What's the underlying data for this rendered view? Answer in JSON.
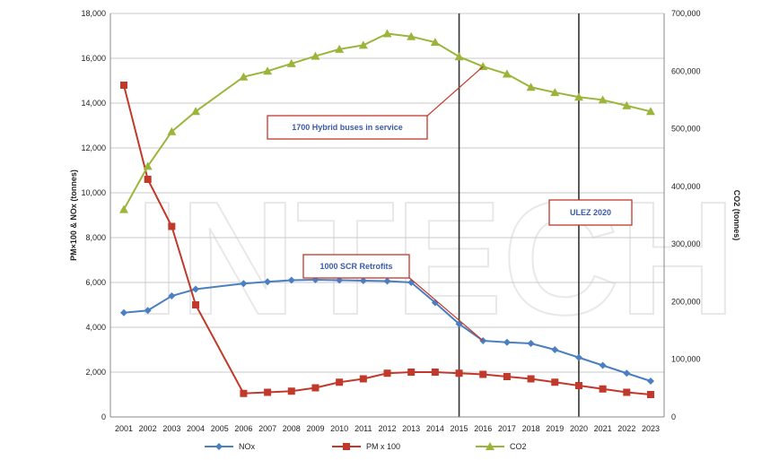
{
  "chart_data": {
    "type": "line",
    "title": "",
    "xlabel": "",
    "ylabel_left": "PM×100 & NOx (tonnes)",
    "ylabel_right": "CO2 (tonnes)",
    "x": [
      2001,
      2002,
      2003,
      2004,
      2006,
      2007,
      2008,
      2009,
      2010,
      2011,
      2012,
      2013,
      2014,
      2015,
      2016,
      2017,
      2018,
      2019,
      2020,
      2021,
      2022,
      2023
    ],
    "x_tick_labels": [
      "2001",
      "2002",
      "2003",
      "2004",
      "2005",
      "2006",
      "2007",
      "2008",
      "2009",
      "2010",
      "2011",
      "2012",
      "2013",
      "2014",
      "2015",
      "2016",
      "2017",
      "2018",
      "2019",
      "2020",
      "2021",
      "2022",
      "2023"
    ],
    "ylim_left": [
      0,
      18000
    ],
    "ylim_right": [
      0,
      700000
    ],
    "y_left_ticks": [
      "0",
      "2,000",
      "4,000",
      "6,000",
      "8,000",
      "10,000",
      "12,000",
      "14,000",
      "16,000",
      "18,000"
    ],
    "y_right_ticks": [
      "0",
      "100,000",
      "200,000",
      "300,000",
      "400,000",
      "500,000",
      "600,000",
      "700,000"
    ],
    "series": [
      {
        "name": "NOx",
        "axis": "left",
        "color": "#4a7fc1",
        "marker": "diamond",
        "values": [
          4650,
          4750,
          5400,
          5700,
          5950,
          6030,
          6100,
          6120,
          6100,
          6080,
          6060,
          6000,
          5100,
          4150,
          3400,
          3330,
          3280,
          3000,
          2650,
          2300,
          1950,
          1600
        ]
      },
      {
        "name": "PM x 100",
        "axis": "left",
        "color": "#c0392b",
        "marker": "square",
        "values": [
          14800,
          10600,
          8500,
          5000,
          1050,
          1100,
          1150,
          1300,
          1550,
          1700,
          1950,
          2000,
          2000,
          1950,
          1900,
          1800,
          1700,
          1550,
          1400,
          1250,
          1100,
          1000
        ]
      },
      {
        "name": "CO2",
        "axis": "right",
        "color": "#9ab53a",
        "marker": "triangle",
        "values": [
          360000,
          435000,
          495000,
          530000,
          590000,
          600000,
          613000,
          626000,
          638000,
          645000,
          665000,
          660000,
          650000,
          625000,
          608000,
          595000,
          572000,
          563000,
          555000,
          550000,
          540000,
          530000
        ]
      }
    ],
    "vlines": [
      2015,
      2020
    ],
    "annotations": [
      {
        "text": "1700 Hybrid buses in service",
        "points_to": {
          "x": 2016,
          "series": "CO2"
        }
      },
      {
        "text": "1000 SCR Retrofits",
        "points_to": {
          "x": 2016,
          "series": "NOx"
        }
      },
      {
        "text": "ULEZ 2020",
        "points_to": null
      }
    ],
    "legend_position": "bottom",
    "grid": true
  },
  "watermark": "INTECH"
}
